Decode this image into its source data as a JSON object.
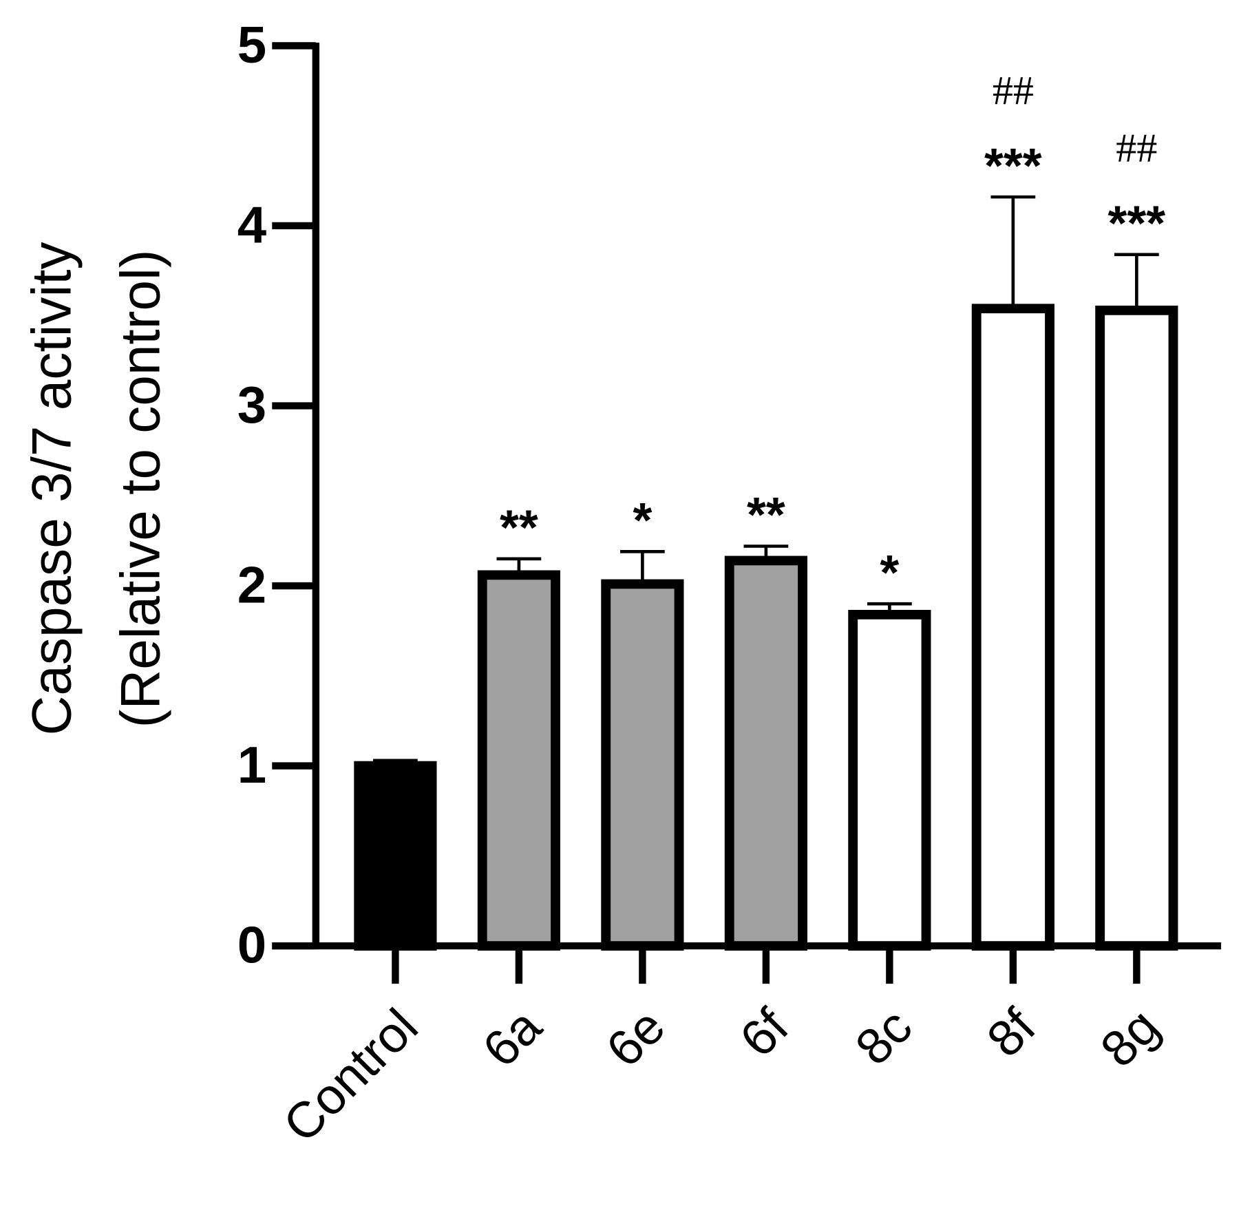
{
  "chart_data": {
    "type": "bar",
    "y_label": [
      "Caspase 3/7 activity",
      "(Relative to control)"
    ],
    "categories": [
      "Control",
      "6a",
      "6e",
      "6f",
      "8c",
      "8f",
      "8g"
    ],
    "values": [
      1.0,
      2.06,
      2.01,
      2.14,
      1.84,
      3.54,
      3.53
    ],
    "errors": [
      0.03,
      0.09,
      0.18,
      0.08,
      0.06,
      0.62,
      0.31
    ],
    "colors": [
      "#000000",
      "#a0a0a0",
      "#a0a0a0",
      "#a0a0a0",
      "#ffffff",
      "#ffffff",
      "#ffffff"
    ],
    "significance": [
      null,
      "**",
      "*",
      "**",
      "*",
      "***",
      "***"
    ],
    "hash": [
      null,
      null,
      null,
      null,
      null,
      "##",
      "##"
    ],
    "ylim": [
      0,
      5
    ],
    "yticks": [
      0,
      1,
      2,
      3,
      4,
      5
    ]
  }
}
